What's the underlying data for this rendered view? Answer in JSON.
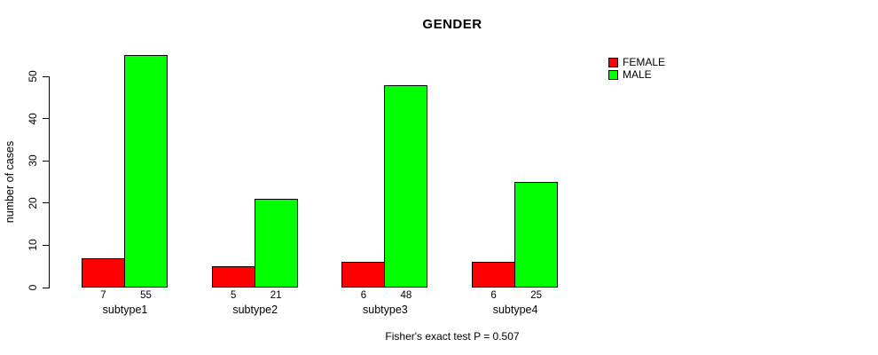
{
  "chart_data": {
    "type": "bar",
    "title": "GENDER",
    "xlabel": "",
    "ylabel": "number of cases",
    "categories": [
      "subtype1",
      "subtype2",
      "subtype3",
      "subtype4"
    ],
    "series": [
      {
        "name": "FEMALE",
        "color": "#ff0000",
        "values": [
          7,
          5,
          6,
          6
        ]
      },
      {
        "name": "MALE",
        "color": "#00ff00",
        "values": [
          55,
          21,
          48,
          25
        ]
      }
    ],
    "yticks": [
      0,
      10,
      20,
      30,
      40,
      50
    ],
    "ylim": [
      0,
      55
    ],
    "bar_value_labels": [
      [
        "7",
        "55"
      ],
      [
        "5",
        "21"
      ],
      [
        "6",
        "48"
      ],
      [
        "6",
        "25"
      ]
    ],
    "grid": false,
    "legend_position": "top-right",
    "annotation": "Fisher's exact test P = 0.507"
  }
}
